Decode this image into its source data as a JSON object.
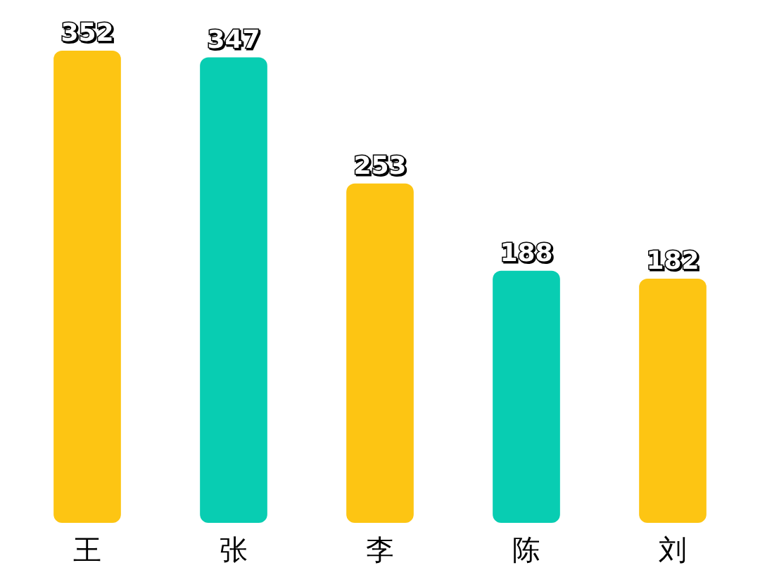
{
  "chart_data": {
    "type": "bar",
    "categories": [
      "王",
      "张",
      "李",
      "陈",
      "刘"
    ],
    "values": [
      352,
      347,
      253,
      188,
      182
    ],
    "colors": [
      "#fdc513",
      "#08cdb2",
      "#fdc513",
      "#08cdb2",
      "#fdc513"
    ],
    "data_labels": true
  }
}
